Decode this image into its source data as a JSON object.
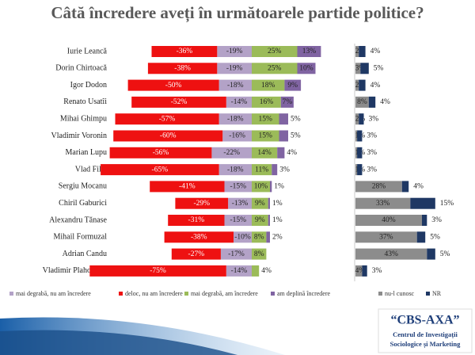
{
  "chart_data": [
    {
      "type": "diverging-bar",
      "title": "Câtă încredere aveți în următoarele partide politice?",
      "categories": [
        "Iurie Leancă",
        "Dorin Chirtoacă",
        "Igor Dodon",
        "Renato Usatîi",
        "Mihai Ghimpu",
        "Vladimir Voronin",
        "Marian Lupu",
        "Vlad Filat",
        "Sergiu Mocanu",
        "Chiril Gaburici",
        "Alexandru Tănase",
        "Mihail Formuzal",
        "Adrian Candu",
        "Vladimir Plahotniuc"
      ],
      "series": [
        {
          "name": "mai degrabă, nu am încredere",
          "color": "#b3a2c7",
          "values": [
            -19,
            -19,
            -18,
            -14,
            -18,
            -16,
            -22,
            -18,
            -15,
            -13,
            -15,
            -10,
            -17,
            -14
          ],
          "value_labels": [
            "-19%",
            "-19%",
            "-18%",
            "-14%",
            "-18%",
            "-16%",
            "-22%",
            "-18%",
            "-15%",
            "-13%",
            "-15%",
            "-10%",
            "-17%",
            "-14%"
          ]
        },
        {
          "name": "deloc, nu am încredere",
          "color": "#ee1111",
          "values": [
            -36,
            -38,
            -50,
            -52,
            -57,
            -60,
            -56,
            -65,
            -41,
            -29,
            -31,
            -38,
            -27,
            -75
          ],
          "value_labels": [
            "-36%",
            "-38%",
            "-50%",
            "-52%",
            "-57%",
            "-60%",
            "-56%",
            "-65%",
            "-41%",
            "-29%",
            "-31%",
            "-38%",
            "-27%",
            "-75%"
          ]
        },
        {
          "name": "mai degrabă, am încredere",
          "color": "#9bbb59",
          "values": [
            25,
            25,
            18,
            16,
            15,
            15,
            14,
            11,
            10,
            9,
            9,
            8,
            8,
            4
          ],
          "value_labels": [
            "25%",
            "25%",
            "18%",
            "16%",
            "15%",
            "15%",
            "14%",
            "11%",
            "10%",
            "9%",
            "9%",
            "8%",
            "8%",
            "4%"
          ]
        },
        {
          "name": "am deplină încredere",
          "color": "#8064a2",
          "values": [
            13,
            10,
            9,
            7,
            5,
            5,
            4,
            3,
            1,
            1,
            1,
            2,
            null,
            null
          ],
          "value_labels": [
            "13%",
            "10%",
            "9%",
            "7%",
            "5%",
            "5%",
            "4%",
            "3%",
            "1%",
            "1%",
            "1%",
            "2%",
            null,
            null
          ]
        }
      ]
    },
    {
      "type": "stacked-bar",
      "series": [
        {
          "name": "nu-l cunosc",
          "color": "#8c8c8c",
          "values": [
            2,
            3,
            2,
            8,
            2,
            1,
            1,
            1,
            28,
            33,
            40,
            37,
            43,
            4
          ],
          "value_labels": [
            "2%",
            "3%",
            "2%",
            "8%",
            "2%",
            "1%",
            "1%",
            "1%",
            "28%",
            "33%",
            "40%",
            "37%",
            "43%",
            "4%"
          ]
        },
        {
          "name": "NR",
          "color": "#1f3864",
          "values": [
            4,
            5,
            4,
            4,
            3,
            3,
            3,
            3,
            4,
            15,
            3,
            5,
            5,
            3
          ],
          "value_labels": [
            "4%",
            "5%",
            "4%",
            "4%",
            "3%",
            "3%",
            "3%",
            "3%",
            "4%",
            "15%",
            "3%",
            "5%",
            "5%",
            "3%"
          ]
        }
      ]
    }
  ],
  "logo": {
    "name": "“CBS-AXA”",
    "line1": "Centrul de Investigații",
    "line2": "Sociologice și Marketing"
  }
}
